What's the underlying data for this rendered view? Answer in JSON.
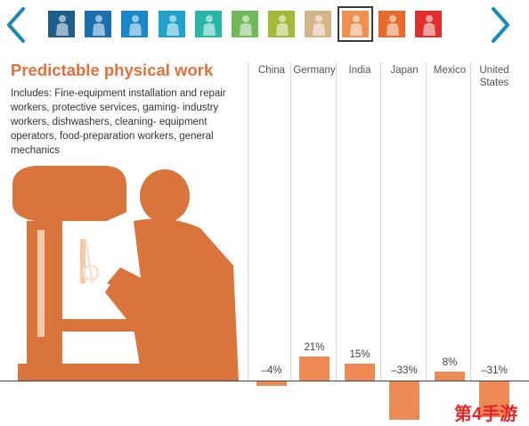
{
  "nav": {
    "prev_icon": "chevron-left-icon",
    "next_icon": "chevron-right-icon",
    "accent": "#1a8ab5",
    "tiles": [
      {
        "name": "worker-tile-1",
        "color": "#1f5d8c",
        "selected": false
      },
      {
        "name": "worker-tile-2",
        "color": "#1b6fae",
        "selected": false
      },
      {
        "name": "worker-tile-3",
        "color": "#1c87c8",
        "selected": false
      },
      {
        "name": "worker-tile-4",
        "color": "#21a3c9",
        "selected": false
      },
      {
        "name": "worker-tile-5",
        "color": "#27b6a8",
        "selected": false
      },
      {
        "name": "worker-tile-6",
        "color": "#71b85a",
        "selected": false
      },
      {
        "name": "worker-tile-7",
        "color": "#a6b83a",
        "selected": false
      },
      {
        "name": "worker-tile-8",
        "color": "#d6b48a",
        "selected": false
      },
      {
        "name": "worker-tile-9",
        "color": "#f0904e",
        "selected": true
      },
      {
        "name": "worker-tile-10",
        "color": "#e86a2c",
        "selected": false
      },
      {
        "name": "worker-tile-11",
        "color": "#e0302e",
        "selected": false
      }
    ]
  },
  "panel": {
    "title": "Predictable physical work",
    "description": "Includes: Fine-equipment installation and repair workers, protective services, gaming- industry workers, dishwashers, cleaning- equipment operators, food-preparation workers, general mechanics",
    "illustration_icon": "drill-press-worker-illustration",
    "illustration_color": "#d9743c"
  },
  "chart_data": {
    "type": "bar",
    "categories": [
      "China",
      "Germany",
      "India",
      "Japan",
      "Mexico",
      "United States"
    ],
    "values": [
      -4,
      21,
      15,
      -33,
      8,
      -31
    ],
    "value_labels": [
      "–4%",
      "21%",
      "15%",
      "–33%",
      "8%",
      "–31%"
    ],
    "bar_color": "#ee8a55"
  },
  "watermark": {
    "text": "第4手游",
    "color": "#e8262a"
  }
}
